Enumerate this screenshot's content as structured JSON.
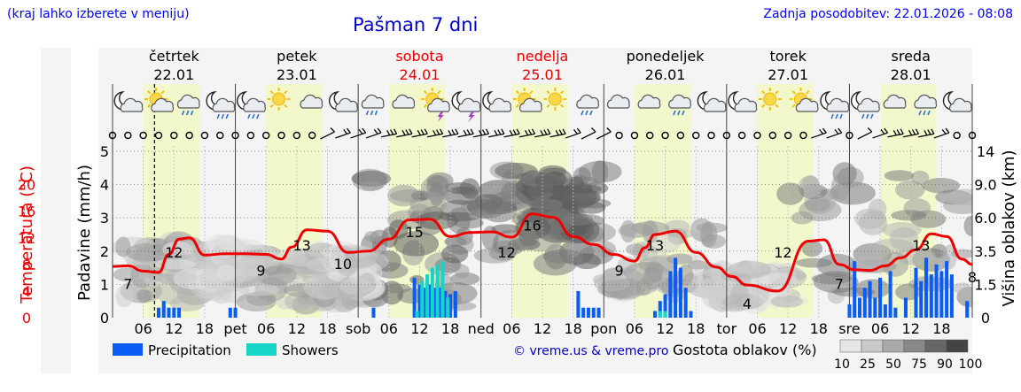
{
  "header": {
    "hint": "(kraj lahko izberete v meniju)",
    "title": "Pašman 7 dni",
    "updated": "Zadnja posodobitev: 22.01.2026 - 08:08"
  },
  "colors": {
    "weekday": "#000000",
    "weekend": "#ee0000",
    "temperature": "#ee0000",
    "precipitation": "#0a5cf5",
    "showers": "#15d6c6",
    "day_band": "#f2f8cc",
    "title": "#0000cc"
  },
  "days": [
    {
      "name": "četrtek",
      "date": "22.01",
      "weekend": false,
      "short": "",
      "icons": [
        "moon-cloud-icon",
        "sun-cloud-icon",
        "cloud-rain-icon",
        "moon-rain-icon"
      ]
    },
    {
      "name": "petek",
      "date": "23.01",
      "weekend": false,
      "short": "pet",
      "icons": [
        "moon-rain-icon",
        "sun-icon",
        "cloud-icon",
        "moon-cloud-icon"
      ]
    },
    {
      "name": "sobota",
      "date": "24.01",
      "weekend": true,
      "short": "sob",
      "icons": [
        "cloud-rain-icon",
        "cloud-icon",
        "sun-thunder-icon",
        "moon-thunder-icon"
      ]
    },
    {
      "name": "nedelja",
      "date": "25.01",
      "weekend": true,
      "short": "ned",
      "icons": [
        "moon-cloud-icon",
        "sun-cloud-icon",
        "sun-icon",
        "cloud-rain-icon"
      ]
    },
    {
      "name": "ponedeljek",
      "date": "26.01",
      "weekend": false,
      "short": "pon",
      "icons": [
        "cloud-icon",
        "cloud-icon",
        "cloud-rain-icon",
        "moon-cloud-icon"
      ]
    },
    {
      "name": "torek",
      "date": "27.01",
      "weekend": false,
      "short": "tor",
      "icons": [
        "moon-cloud-icon",
        "sun-icon",
        "sun-cloud-icon",
        "moon-rain-icon"
      ]
    },
    {
      "name": "sreda",
      "date": "28.01",
      "weekend": false,
      "short": "sre",
      "icons": [
        "moon-rain-icon",
        "cloud-icon",
        "cloud-rain-icon",
        "moon-cloud-icon"
      ]
    }
  ],
  "legend": {
    "precipitation": "Precipitation",
    "showers": "Showers",
    "copyright": "© vreme.us & vreme.pro",
    "cloud_density": "Gostota oblakov (%)",
    "density_steps": [
      "10",
      "25",
      "50",
      "75",
      "90",
      "100"
    ]
  },
  "chart_data": {
    "type": "meteogram",
    "x_unit": "hours since 22.01 00:00",
    "x_range": [
      0,
      168
    ],
    "x_tick_hours": [
      "06",
      "12",
      "18"
    ],
    "y_left_temperature": {
      "label": "Temperatura (°C)",
      "ticks": [
        0,
        4,
        8,
        12,
        16,
        20
      ],
      "range": [
        0,
        25
      ]
    },
    "y_left_precip": {
      "label": "Padavine (mm/h)",
      "ticks": [
        0,
        1,
        2,
        3,
        4,
        5
      ],
      "range": [
        0,
        5
      ]
    },
    "y_right_cloud": {
      "label": "Višina oblakov (km)",
      "ticks": [
        "0",
        "1.5",
        "3.5",
        "6.0",
        "9.0",
        "14"
      ]
    },
    "now_hour": 8.2,
    "temperature": {
      "name": "Temperatura",
      "hours": [
        0,
        3,
        6,
        9,
        11,
        13,
        15,
        18,
        22,
        26,
        30,
        33,
        35,
        38,
        42,
        46,
        50,
        54,
        58,
        62,
        66,
        70,
        74,
        78,
        82,
        86,
        90,
        94,
        98,
        102,
        104,
        106,
        110,
        114,
        118,
        121,
        124,
        130,
        136,
        139,
        142,
        145,
        148,
        151,
        154,
        157,
        160,
        163,
        166,
        168
      ],
      "values": [
        7.7,
        7.8,
        7.0,
        6.8,
        9.5,
        11.8,
        12.0,
        9.4,
        9.6,
        9.6,
        9.5,
        8.8,
        10.6,
        13.2,
        13.0,
        9.8,
        10.0,
        11.8,
        14.7,
        14.8,
        12.2,
        12.8,
        12.9,
        12.1,
        15.6,
        15.1,
        12.2,
        11.0,
        9.5,
        8.5,
        10.5,
        12.5,
        13.0,
        9.8,
        7.6,
        6.2,
        4.9,
        4.0,
        11.5,
        11.7,
        8.0,
        7.2,
        7.1,
        7.8,
        9.0,
        10.2,
        12.6,
        12.2,
        8.8,
        8.0
      ]
    },
    "temperature_labels": [
      {
        "hour": 3,
        "text": "7"
      },
      {
        "hour": 12,
        "text": "12"
      },
      {
        "hour": 29,
        "text": "9"
      },
      {
        "hour": 37,
        "text": "13"
      },
      {
        "hour": 45,
        "text": "10"
      },
      {
        "hour": 59,
        "text": "15"
      },
      {
        "hour": 77,
        "text": "12"
      },
      {
        "hour": 82,
        "text": "16"
      },
      {
        "hour": 99,
        "text": "9"
      },
      {
        "hour": 106,
        "text": "13"
      },
      {
        "hour": 124,
        "text": "4"
      },
      {
        "hour": 131,
        "text": "12"
      },
      {
        "hour": 142,
        "text": "7"
      },
      {
        "hour": 158,
        "text": "13"
      },
      {
        "hour": 168,
        "text": "8"
      }
    ],
    "precipitation": {
      "name": "Precipitation",
      "hours": [
        9,
        10,
        11,
        12,
        13,
        23,
        24,
        51,
        59,
        60,
        61,
        62,
        63,
        64,
        65,
        66,
        67,
        91,
        92,
        93,
        94,
        95,
        106,
        107,
        108,
        109,
        110,
        111,
        112,
        113,
        144,
        145,
        146,
        147,
        148,
        149,
        150,
        151,
        152,
        153,
        155,
        157,
        158,
        159,
        160,
        161,
        162,
        163,
        164,
        167
      ],
      "values": [
        0.3,
        0.5,
        0.3,
        0.3,
        0.3,
        0.3,
        0.3,
        0.3,
        1.2,
        1.0,
        0.9,
        1.0,
        0.9,
        0.9,
        0.8,
        0.7,
        0.8,
        0.8,
        0.3,
        0.3,
        0.3,
        0.3,
        0.2,
        0.5,
        0.7,
        1.4,
        1.8,
        1.5,
        0.9,
        0.2,
        0.4,
        1.7,
        0.6,
        0.9,
        1.1,
        0.6,
        1.2,
        0.4,
        1.4,
        0.3,
        0.6,
        1.5,
        1.1,
        1.8,
        1.3,
        1.6,
        1.4,
        1.7,
        1.3,
        0.5
      ]
    },
    "showers": {
      "name": "Showers",
      "hours": [
        59,
        60,
        61,
        62,
        63,
        64,
        65,
        107,
        108
      ],
      "values": [
        0.2,
        1.1,
        1.3,
        1.5,
        1.6,
        1.7,
        0.6,
        0.2,
        0.2
      ]
    },
    "wind": {
      "hours": [
        0,
        3,
        6,
        9,
        12,
        15,
        18,
        21,
        24,
        27,
        30,
        33,
        36,
        39,
        42,
        45,
        48,
        51,
        54,
        57,
        60,
        63,
        66,
        69,
        72,
        75,
        78,
        81,
        84,
        87,
        90,
        93,
        96,
        99,
        102,
        105,
        108,
        111,
        114,
        117,
        120,
        123,
        126,
        129,
        132,
        135,
        138,
        141,
        144,
        147,
        150,
        153,
        156,
        159,
        162,
        165,
        168
      ],
      "speed_class": [
        0,
        0,
        0,
        0,
        0,
        0,
        0,
        0,
        0,
        0,
        0,
        0,
        0,
        0,
        1,
        2,
        2,
        2,
        3,
        3,
        3,
        3,
        3,
        3,
        3,
        3,
        3,
        3,
        3,
        3,
        2,
        1,
        1,
        0,
        0,
        0,
        0,
        0,
        0,
        0,
        0,
        0,
        0,
        0,
        0,
        0,
        2,
        2,
        0,
        1,
        2,
        3,
        3,
        3,
        2,
        0,
        0
      ]
    }
  }
}
